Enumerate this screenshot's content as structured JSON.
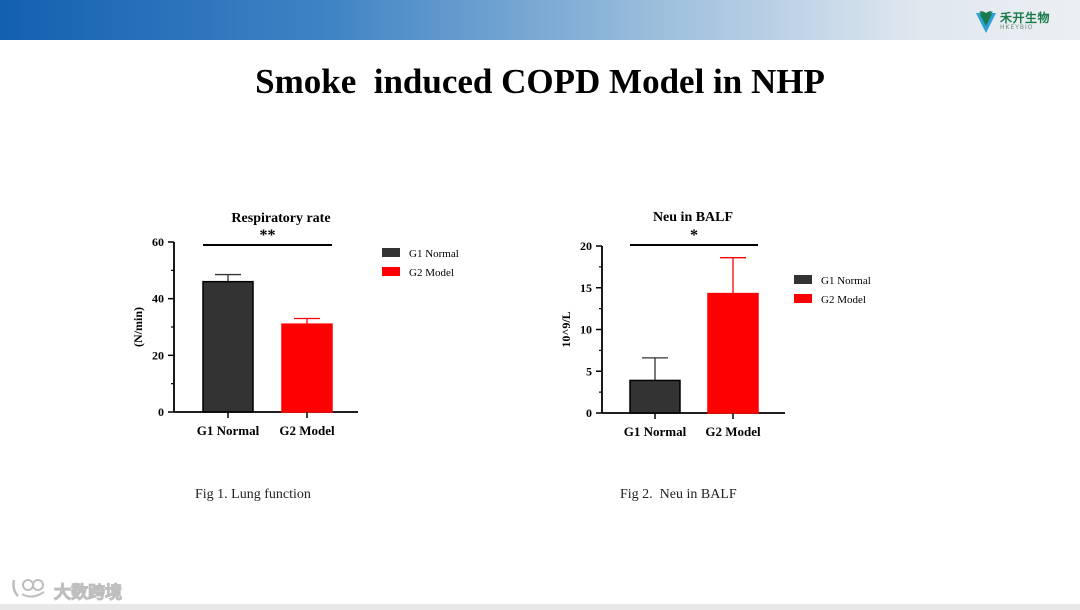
{
  "header": {
    "logo_text": "禾开生物",
    "logo_subtext": "HKEYBIO",
    "brand_colors": {
      "bar_start": "#1460b0",
      "bar_end": "#eceff2",
      "logo_green": "#1a7a4a",
      "logo_blue": "#2aa0d8"
    }
  },
  "slide_title": "Smoke  induced COPD Model in NHP",
  "watermark": {
    "text": "大数跨境",
    "icon": "logo-mark-icon"
  },
  "chart_data": [
    {
      "type": "bar",
      "title": "Respiratory rate",
      "xlabel": "",
      "ylabel": "(N/min)",
      "ylim": [
        0,
        60
      ],
      "yticks": [
        0,
        20,
        40,
        60
      ],
      "ytick_labels": [
        "0",
        "20",
        "40",
        "60"
      ],
      "categories": [
        "G1 Normal",
        "G2 Model"
      ],
      "values": [
        46,
        31
      ],
      "errors": [
        2.5,
        2
      ],
      "colors": [
        "#333333",
        "#ff0000"
      ],
      "legend": [
        "G1 Normal",
        "G2 Model"
      ],
      "legend_position": "right-top",
      "significance": "**",
      "caption": "Fig 1. Lung function"
    },
    {
      "type": "bar",
      "title": "Neu in BALF",
      "xlabel": "",
      "ylabel": "10^9/L",
      "ylim": [
        0,
        20
      ],
      "yticks": [
        0,
        5,
        10,
        15,
        20
      ],
      "ytick_labels": [
        "0",
        "5",
        "10",
        "15",
        "20"
      ],
      "categories": [
        "G1 Normal",
        "G2 Model"
      ],
      "values": [
        3.9,
        14.3
      ],
      "errors": [
        2.7,
        4.3
      ],
      "colors": [
        "#333333",
        "#ff0000"
      ],
      "legend": [
        "G1 Normal",
        "G2 Model"
      ],
      "legend_position": "right-middle",
      "significance": "*",
      "caption": "Fig 2.  Neu in BALF"
    }
  ]
}
